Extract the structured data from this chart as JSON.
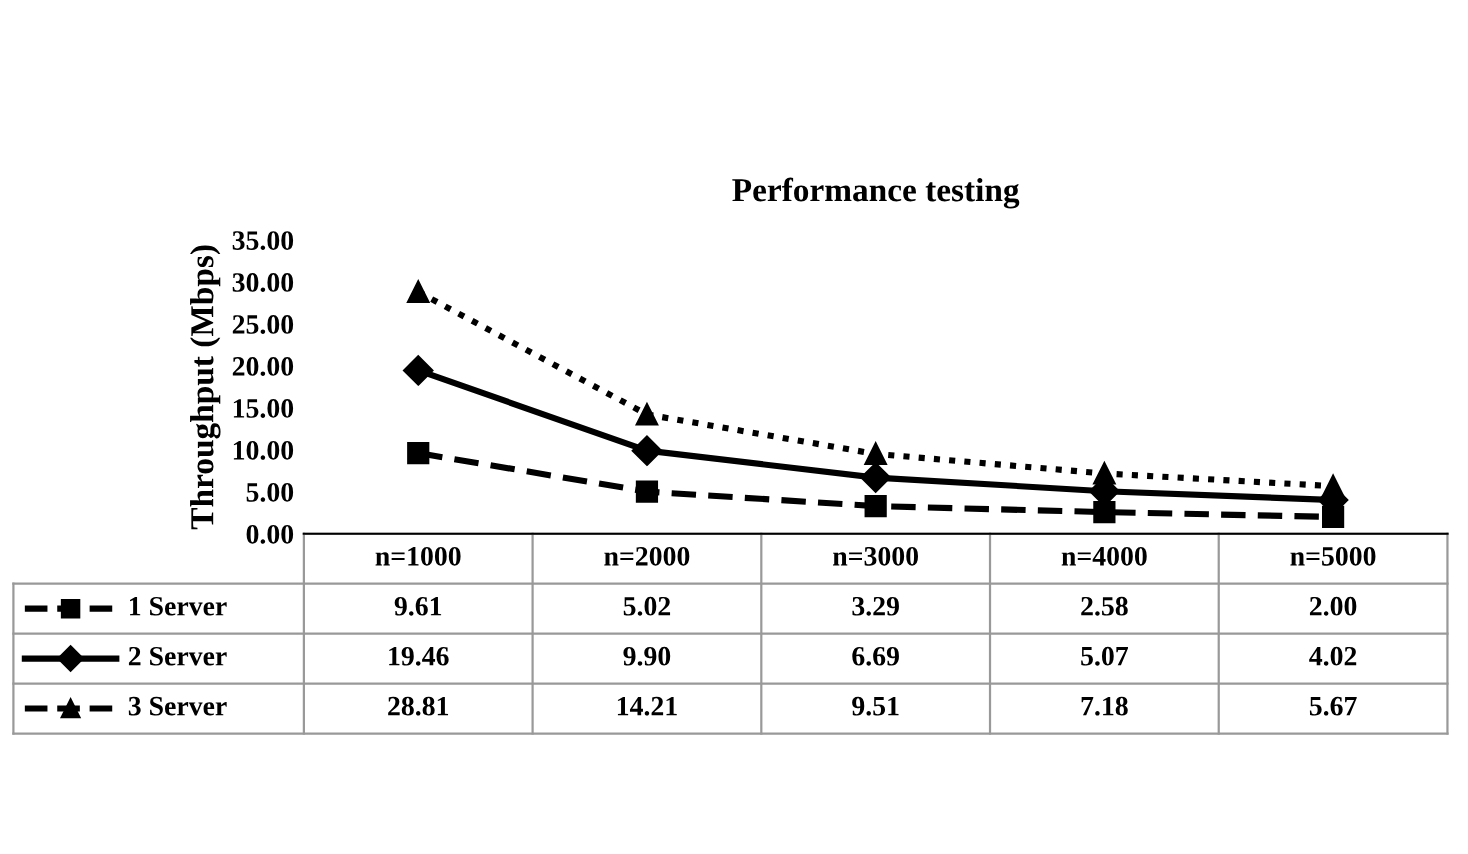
{
  "chart_data": {
    "type": "line",
    "title": "Performance testing",
    "ylabel": "Throughput (Mbps)",
    "categories": [
      "n=1000",
      "n=2000",
      "n=3000",
      "n=4000",
      "n=5000"
    ],
    "series": [
      {
        "name": "1 Server",
        "color": "#000000",
        "marker": "square",
        "line_style": "dashed",
        "values": [
          9.61,
          5.02,
          3.29,
          2.58,
          2.0
        ],
        "value_labels": [
          "9.61",
          "5.02",
          "3.29",
          "2.58",
          "2.00"
        ]
      },
      {
        "name": "2 Server",
        "color": "#000000",
        "marker": "diamond",
        "line_style": "solid",
        "values": [
          19.46,
          9.9,
          6.69,
          5.07,
          4.02
        ],
        "value_labels": [
          "19.46",
          "9.90",
          "6.69",
          "5.07",
          "4.02"
        ]
      },
      {
        "name": "3 Server",
        "color": "#000000",
        "marker": "triangle",
        "line_style": "dotted",
        "values": [
          28.81,
          14.21,
          9.51,
          7.18,
          5.67
        ],
        "value_labels": [
          "28.81",
          "14.21",
          "9.51",
          "7.18",
          "5.67"
        ]
      }
    ],
    "ylim": [
      0,
      35
    ],
    "yticks": [
      {
        "value": 0,
        "label": "0.00"
      },
      {
        "value": 5,
        "label": "5.00"
      },
      {
        "value": 10,
        "label": "10.00"
      },
      {
        "value": 15,
        "label": "15.00"
      },
      {
        "value": 20,
        "label": "20.00"
      },
      {
        "value": 25,
        "label": "25.00"
      },
      {
        "value": 30,
        "label": "30.00"
      },
      {
        "value": 35,
        "label": "35.00"
      }
    ],
    "grid": false,
    "legend": "bottom"
  }
}
